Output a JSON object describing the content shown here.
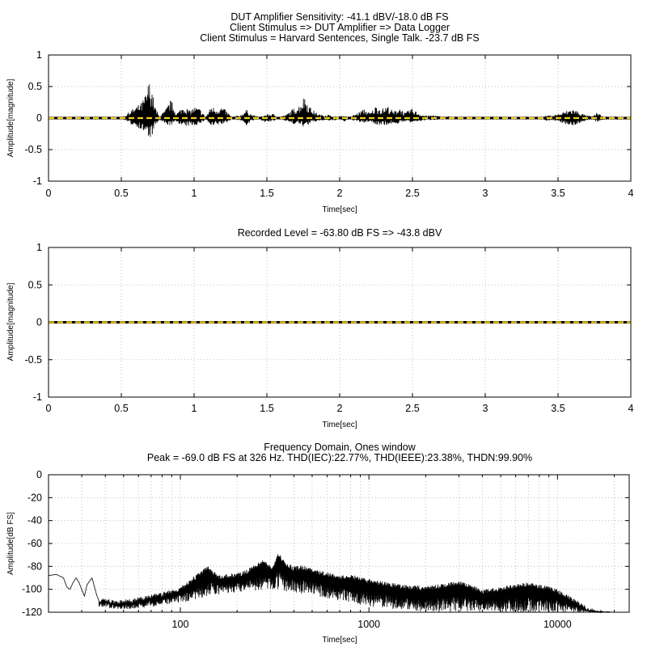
{
  "chart_data": [
    {
      "type": "line",
      "title_lines": [
        "DUT Amplifier Sensitivity: -41.1 dBV/-18.0 dB FS",
        "Client Stimulus => DUT Amplifier => Data Logger",
        "Client Stimulus = Harvard Sentences, Single Talk. -23.7 dB FS"
      ],
      "xlabel": "Time[sec]",
      "ylabel": "Amplitude[magnitude]",
      "xlim": [
        0,
        4
      ],
      "ylim": [
        -1,
        1
      ],
      "xticks": [
        "0",
        "0.5",
        "1",
        "1.5",
        "2",
        "2.5",
        "3",
        "3.5",
        "4"
      ],
      "yticks": [
        "1",
        "0.5",
        "0",
        "-0.5",
        "-1"
      ],
      "grid": true,
      "series": [
        {
          "style": "waveform",
          "color": "#000000",
          "envelope": [
            {
              "x": 0.0,
              "max": 0.01,
              "min": -0.01
            },
            {
              "x": 0.5,
              "max": 0.01,
              "min": -0.01
            },
            {
              "x": 0.53,
              "max": 0.05,
              "min": -0.04
            },
            {
              "x": 0.56,
              "max": 0.12,
              "min": -0.1
            },
            {
              "x": 0.6,
              "max": 0.18,
              "min": -0.12
            },
            {
              "x": 0.64,
              "max": 0.25,
              "min": -0.2
            },
            {
              "x": 0.67,
              "max": 0.4,
              "min": -0.25
            },
            {
              "x": 0.69,
              "max": 0.6,
              "min": -0.33
            },
            {
              "x": 0.71,
              "max": 0.48,
              "min": -0.3
            },
            {
              "x": 0.73,
              "max": 0.2,
              "min": -0.15
            },
            {
              "x": 0.76,
              "max": 0.03,
              "min": -0.03
            },
            {
              "x": 0.8,
              "max": 0.12,
              "min": -0.1
            },
            {
              "x": 0.84,
              "max": 0.3,
              "min": -0.12
            },
            {
              "x": 0.88,
              "max": 0.08,
              "min": -0.06
            },
            {
              "x": 0.93,
              "max": 0.2,
              "min": -0.15
            },
            {
              "x": 0.97,
              "max": 0.12,
              "min": -0.12
            },
            {
              "x": 1.0,
              "max": 0.18,
              "min": -0.12
            },
            {
              "x": 1.04,
              "max": 0.15,
              "min": -0.1
            },
            {
              "x": 1.08,
              "max": 0.02,
              "min": -0.02
            },
            {
              "x": 1.12,
              "max": 0.2,
              "min": -0.15
            },
            {
              "x": 1.15,
              "max": 0.15,
              "min": -0.12
            },
            {
              "x": 1.19,
              "max": 0.18,
              "min": -0.1
            },
            {
              "x": 1.22,
              "max": 0.12,
              "min": -0.08
            },
            {
              "x": 1.26,
              "max": 0.02,
              "min": -0.02
            },
            {
              "x": 1.32,
              "max": 0.05,
              "min": -0.04
            },
            {
              "x": 1.36,
              "max": 0.14,
              "min": -0.12
            },
            {
              "x": 1.4,
              "max": 0.05,
              "min": -0.04
            },
            {
              "x": 1.45,
              "max": 0.02,
              "min": -0.02
            },
            {
              "x": 1.5,
              "max": 0.06,
              "min": -0.08
            },
            {
              "x": 1.54,
              "max": 0.07,
              "min": -0.05
            },
            {
              "x": 1.58,
              "max": 0.02,
              "min": -0.02
            },
            {
              "x": 1.63,
              "max": 0.05,
              "min": -0.04
            },
            {
              "x": 1.68,
              "max": 0.15,
              "min": -0.1
            },
            {
              "x": 1.72,
              "max": 0.2,
              "min": -0.1
            },
            {
              "x": 1.76,
              "max": 0.37,
              "min": -0.15
            },
            {
              "x": 1.79,
              "max": 0.2,
              "min": -0.1
            },
            {
              "x": 1.83,
              "max": 0.1,
              "min": -0.06
            },
            {
              "x": 1.87,
              "max": 0.05,
              "min": -0.04
            },
            {
              "x": 1.92,
              "max": 0.06,
              "min": -0.04
            },
            {
              "x": 1.95,
              "max": 0.02,
              "min": -0.05
            },
            {
              "x": 1.99,
              "max": 0.03,
              "min": -0.02
            },
            {
              "x": 2.03,
              "max": 0.04,
              "min": -0.06
            },
            {
              "x": 2.07,
              "max": 0.02,
              "min": -0.02
            },
            {
              "x": 2.12,
              "max": 0.08,
              "min": -0.06
            },
            {
              "x": 2.17,
              "max": 0.15,
              "min": -0.08
            },
            {
              "x": 2.21,
              "max": 0.08,
              "min": -0.05
            },
            {
              "x": 2.25,
              "max": 0.2,
              "min": -0.12
            },
            {
              "x": 2.29,
              "max": 0.15,
              "min": -0.1
            },
            {
              "x": 2.33,
              "max": 0.2,
              "min": -0.12
            },
            {
              "x": 2.37,
              "max": 0.1,
              "min": -0.08
            },
            {
              "x": 2.41,
              "max": 0.18,
              "min": -0.1
            },
            {
              "x": 2.45,
              "max": 0.08,
              "min": -0.05
            },
            {
              "x": 2.49,
              "max": 0.16,
              "min": -0.08
            },
            {
              "x": 2.53,
              "max": 0.1,
              "min": -0.06
            },
            {
              "x": 2.57,
              "max": 0.05,
              "min": -0.04
            },
            {
              "x": 2.61,
              "max": 0.04,
              "min": -0.03
            },
            {
              "x": 2.65,
              "max": 0.05,
              "min": -0.03
            },
            {
              "x": 2.7,
              "max": 0.02,
              "min": -0.02
            },
            {
              "x": 2.75,
              "max": 0.03,
              "min": -0.02
            },
            {
              "x": 2.8,
              "max": 0.01,
              "min": -0.01
            },
            {
              "x": 3.38,
              "max": 0.01,
              "min": -0.01
            },
            {
              "x": 3.42,
              "max": 0.04,
              "min": -0.04
            },
            {
              "x": 3.47,
              "max": 0.05,
              "min": -0.04
            },
            {
              "x": 3.52,
              "max": 0.08,
              "min": -0.07
            },
            {
              "x": 3.56,
              "max": 0.12,
              "min": -0.1
            },
            {
              "x": 3.6,
              "max": 0.15,
              "min": -0.13
            },
            {
              "x": 3.63,
              "max": 0.12,
              "min": -0.1
            },
            {
              "x": 3.66,
              "max": 0.08,
              "min": -0.07
            },
            {
              "x": 3.7,
              "max": 0.04,
              "min": -0.03
            },
            {
              "x": 3.74,
              "max": 0.03,
              "min": -0.03
            },
            {
              "x": 3.77,
              "max": 0.1,
              "min": -0.08
            },
            {
              "x": 3.8,
              "max": 0.03,
              "min": -0.03
            },
            {
              "x": 3.85,
              "max": 0.02,
              "min": -0.02
            },
            {
              "x": 3.9,
              "max": 0.03,
              "min": -0.03
            },
            {
              "x": 3.95,
              "max": 0.02,
              "min": -0.02
            },
            {
              "x": 4.0,
              "max": 0.01,
              "min": -0.01
            }
          ]
        },
        {
          "style": "dashed",
          "color": "#f2d21b",
          "y": 0
        }
      ]
    },
    {
      "type": "line",
      "title_lines": [
        "Recorded Level = -63.80 dB FS  => -43.8 dBV"
      ],
      "xlabel": "Time[sec]",
      "ylabel": "Amplitude[magnitude]",
      "xlim": [
        0,
        4
      ],
      "ylim": [
        -1,
        1
      ],
      "xticks": [
        "0",
        "0.5",
        "1",
        "1.5",
        "2",
        "2.5",
        "3",
        "3.5",
        "4"
      ],
      "yticks": [
        "1",
        "0.5",
        "0",
        "-0.5",
        "-1"
      ],
      "grid": true,
      "series": [
        {
          "style": "waveform",
          "color": "#000000",
          "envelope": [
            {
              "x": 0.0,
              "max": 0.003,
              "min": -0.003
            },
            {
              "x": 0.7,
              "max": 0.006,
              "min": -0.006
            },
            {
              "x": 0.8,
              "max": 0.008,
              "min": -0.008
            },
            {
              "x": 1.2,
              "max": 0.006,
              "min": -0.006
            },
            {
              "x": 1.6,
              "max": 0.005,
              "min": -0.005
            },
            {
              "x": 2.0,
              "max": 0.006,
              "min": -0.006
            },
            {
              "x": 2.4,
              "max": 0.008,
              "min": -0.008
            },
            {
              "x": 2.8,
              "max": 0.004,
              "min": -0.004
            },
            {
              "x": 3.2,
              "max": 0.003,
              "min": -0.003
            },
            {
              "x": 3.6,
              "max": 0.006,
              "min": -0.006
            },
            {
              "x": 4.0,
              "max": 0.004,
              "min": -0.004
            }
          ]
        },
        {
          "style": "dashed",
          "color": "#f2d21b",
          "y": 0
        }
      ]
    },
    {
      "type": "line",
      "title_lines": [
        "Frequency Domain, Ones window",
        "Peak = -69.0 dB FS at 326 Hz. THD(IEC):22.77%, THD(IEEE):23.38%, THDN:99.90%"
      ],
      "xlabel": "Time[sec]",
      "ylabel": "Amplitude[dB FS]",
      "xscale": "log",
      "xlim": [
        20,
        24000
      ],
      "ylim": [
        -120,
        0
      ],
      "xticks": [
        {
          "value": 100,
          "label": "100"
        },
        {
          "value": 1000,
          "label": "1000"
        },
        {
          "value": 10000,
          "label": "10000"
        }
      ],
      "yticks": [
        "0",
        "-20",
        "-40",
        "-60",
        "-80",
        "-100",
        "-120"
      ],
      "grid": true,
      "series": [
        {
          "style": "spectrum",
          "color": "#000000",
          "envelope": [
            {
              "x": 20,
              "y": -88
            },
            {
              "x": 22,
              "y": -87
            },
            {
              "x": 24,
              "y": -90
            },
            {
              "x": 25,
              "y": -98
            },
            {
              "x": 26,
              "y": -100
            },
            {
              "x": 27,
              "y": -94
            },
            {
              "x": 28,
              "y": -90
            },
            {
              "x": 29,
              "y": -94
            },
            {
              "x": 31,
              "y": -106
            },
            {
              "x": 32,
              "y": -96
            },
            {
              "x": 34,
              "y": -90
            },
            {
              "x": 36,
              "y": -105
            },
            {
              "x": 37,
              "y": -110
            },
            {
              "x": 40,
              "y": -107
            },
            {
              "x": 45,
              "y": -110
            },
            {
              "x": 50,
              "y": -109
            },
            {
              "x": 60,
              "y": -107
            },
            {
              "x": 70,
              "y": -104
            },
            {
              "x": 80,
              "y": -103
            },
            {
              "x": 90,
              "y": -100
            },
            {
              "x": 100,
              "y": -98
            },
            {
              "x": 110,
              "y": -93
            },
            {
              "x": 120,
              "y": -88
            },
            {
              "x": 130,
              "y": -83
            },
            {
              "x": 140,
              "y": -80
            },
            {
              "x": 150,
              "y": -84
            },
            {
              "x": 160,
              "y": -88
            },
            {
              "x": 170,
              "y": -87
            },
            {
              "x": 190,
              "y": -86
            },
            {
              "x": 210,
              "y": -85
            },
            {
              "x": 230,
              "y": -82
            },
            {
              "x": 250,
              "y": -78
            },
            {
              "x": 270,
              "y": -74
            },
            {
              "x": 290,
              "y": -77
            },
            {
              "x": 310,
              "y": -80
            },
            {
              "x": 326,
              "y": -69
            },
            {
              "x": 340,
              "y": -70
            },
            {
              "x": 360,
              "y": -76
            },
            {
              "x": 400,
              "y": -80
            },
            {
              "x": 450,
              "y": -79
            },
            {
              "x": 500,
              "y": -82
            },
            {
              "x": 600,
              "y": -85
            },
            {
              "x": 700,
              "y": -88
            },
            {
              "x": 800,
              "y": -87
            },
            {
              "x": 1000,
              "y": -91
            },
            {
              "x": 1200,
              "y": -93
            },
            {
              "x": 1500,
              "y": -96
            },
            {
              "x": 2000,
              "y": -97
            },
            {
              "x": 2500,
              "y": -95
            },
            {
              "x": 3000,
              "y": -92
            },
            {
              "x": 3500,
              "y": -96
            },
            {
              "x": 4000,
              "y": -100
            },
            {
              "x": 5000,
              "y": -98
            },
            {
              "x": 6000,
              "y": -95
            },
            {
              "x": 7000,
              "y": -94
            },
            {
              "x": 8000,
              "y": -96
            },
            {
              "x": 9000,
              "y": -97
            },
            {
              "x": 10000,
              "y": -100
            },
            {
              "x": 12000,
              "y": -107
            },
            {
              "x": 14000,
              "y": -114
            },
            {
              "x": 16000,
              "y": -118
            },
            {
              "x": 18000,
              "y": -119
            },
            {
              "x": 20000,
              "y": -120
            }
          ],
          "floor": [
            {
              "x": 20,
              "y": -92
            },
            {
              "x": 36,
              "y": -115
            },
            {
              "x": 50,
              "y": -118
            },
            {
              "x": 100,
              "y": -112
            },
            {
              "x": 150,
              "y": -105
            },
            {
              "x": 300,
              "y": -100
            },
            {
              "x": 500,
              "y": -105
            },
            {
              "x": 1000,
              "y": -115
            },
            {
              "x": 2000,
              "y": -120
            },
            {
              "x": 10000,
              "y": -120
            },
            {
              "x": 20000,
              "y": -120
            }
          ]
        }
      ]
    }
  ]
}
